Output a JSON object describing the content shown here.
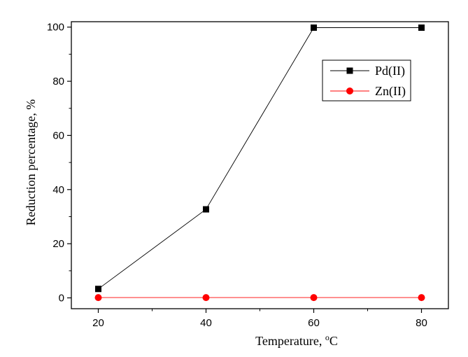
{
  "chart_data": {
    "type": "line",
    "x": [
      20,
      40,
      60,
      80
    ],
    "series": [
      {
        "name": "Pd(II)",
        "values": [
          3.3,
          32.7,
          99.8,
          99.8
        ],
        "color": "#000000",
        "marker": "square"
      },
      {
        "name": "Zn(II)",
        "values": [
          0.1,
          0.1,
          0.1,
          0.1
        ],
        "color": "#ff0000",
        "marker": "circle"
      }
    ],
    "xlabel_main": "Temperature, ",
    "xlabel_sup": "o",
    "xlabel_unit": "C",
    "ylabel": "Reduction percentage, %",
    "xlim": [
      15,
      85
    ],
    "ylim": [
      -4,
      102
    ],
    "xticks": [
      20,
      40,
      60,
      80
    ],
    "yticks": [
      0,
      20,
      40,
      60,
      80,
      100
    ],
    "grid": false,
    "legend_position": "top-right"
  }
}
